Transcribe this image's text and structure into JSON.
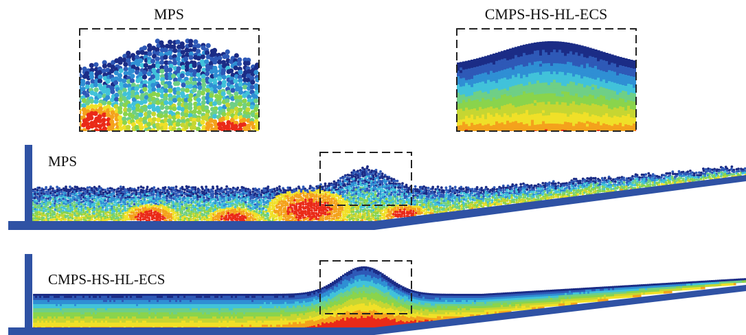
{
  "zoom_titles": {
    "left": "MPS",
    "right": "CMPS-HS-HL-ECS"
  },
  "panels": [
    {
      "id": "mps",
      "label": "MPS",
      "method": "MPS",
      "noisy": true
    },
    {
      "id": "cmps",
      "label": "CMPS-HS-HL-ECS",
      "method": "CMPS-HS-HL-ECS",
      "noisy": false
    }
  ],
  "colors": {
    "wall": "#2f52a4",
    "scale": [
      "#1b2c86",
      "#2e59b7",
      "#2f8fd4",
      "#41c2da",
      "#6fcf86",
      "#8ad44c",
      "#c6d632",
      "#f0e028",
      "#f4a21c",
      "#ea2a18"
    ],
    "dashed_box": "#222222",
    "background": "#ffffff"
  }
}
